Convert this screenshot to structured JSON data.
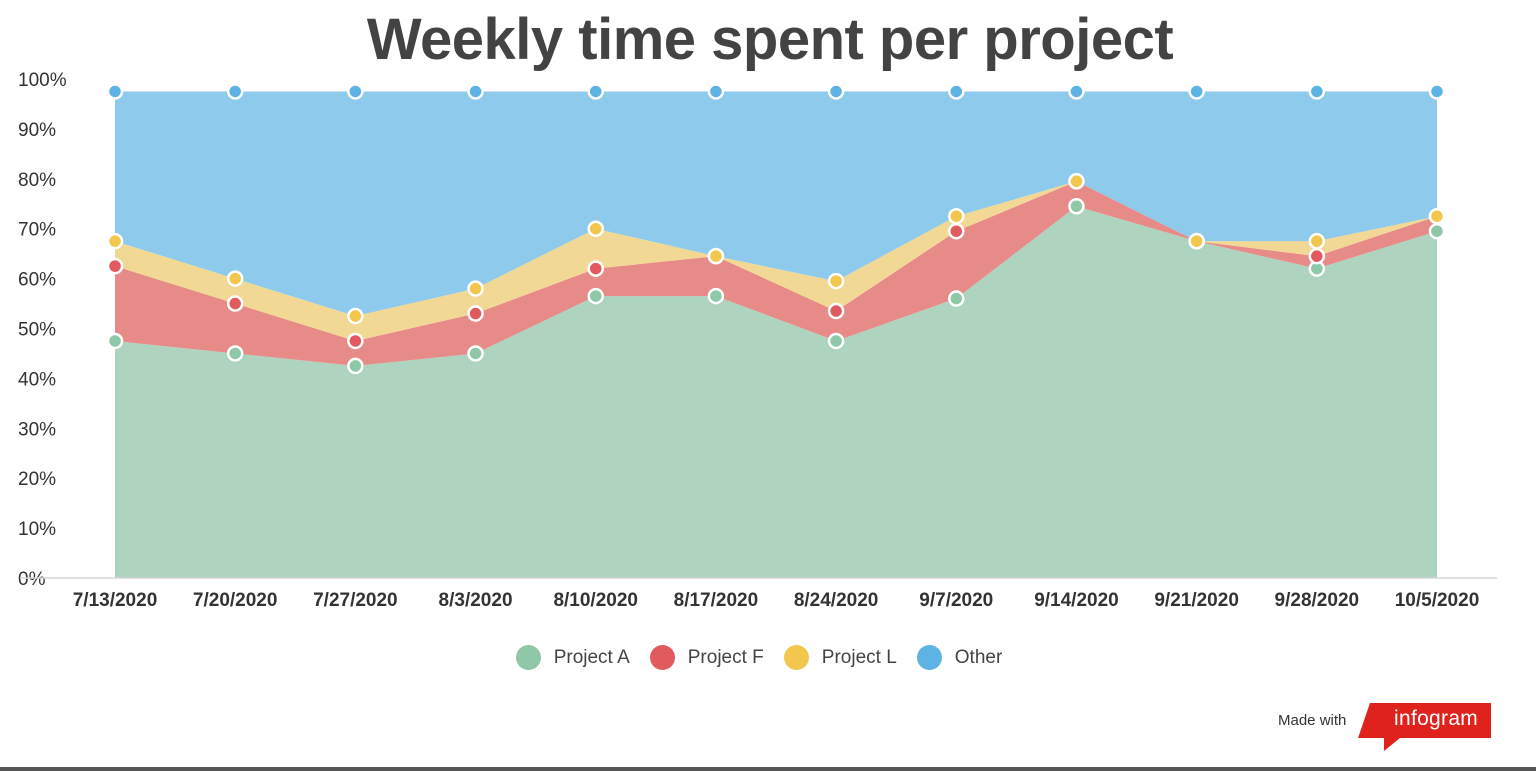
{
  "chart_data": {
    "type": "area",
    "stacked": true,
    "title": "Weekly time spent per project",
    "x": [
      "7/13/2020",
      "7/20/2020",
      "7/27/2020",
      "8/3/2020",
      "8/10/2020",
      "8/17/2020",
      "8/24/2020",
      "9/7/2020",
      "9/14/2020",
      "9/21/2020",
      "9/28/2020",
      "10/5/2020"
    ],
    "y_ticks": [
      "0%",
      "10%",
      "20%",
      "30%",
      "40%",
      "50%",
      "60%",
      "70%",
      "80%",
      "90%",
      "100%"
    ],
    "ylim": [
      0,
      100
    ],
    "grid": false,
    "legend_position": "bottom",
    "series": [
      {
        "name": "Project A",
        "color": "#8fc8a9",
        "fill": "#aed4bf",
        "values": [
          47.5,
          45,
          42.5,
          45,
          56.5,
          56.5,
          47.5,
          56,
          74.5,
          67.5,
          62,
          69.5
        ]
      },
      {
        "name": "Project F",
        "color": "#e05a5e",
        "fill": "#e78b88",
        "values": [
          15,
          10,
          5,
          8,
          5.5,
          8,
          6,
          13.5,
          5,
          0,
          2.5,
          3
        ]
      },
      {
        "name": "Project L",
        "color": "#f3c74d",
        "fill": "#f1d895",
        "values": [
          5,
          5,
          5,
          5,
          8,
          0,
          6,
          3,
          0,
          0,
          3,
          0
        ]
      },
      {
        "name": "Other",
        "color": "#5db3e3",
        "fill": "#8dcaeb",
        "values": [
          30,
          37.5,
          45,
          39.5,
          27.5,
          33,
          38,
          25,
          18,
          30,
          30,
          25
        ]
      }
    ]
  },
  "footer": {
    "made_with": "Made with",
    "brand": "infogram",
    "brand_color": "#e0221d"
  }
}
